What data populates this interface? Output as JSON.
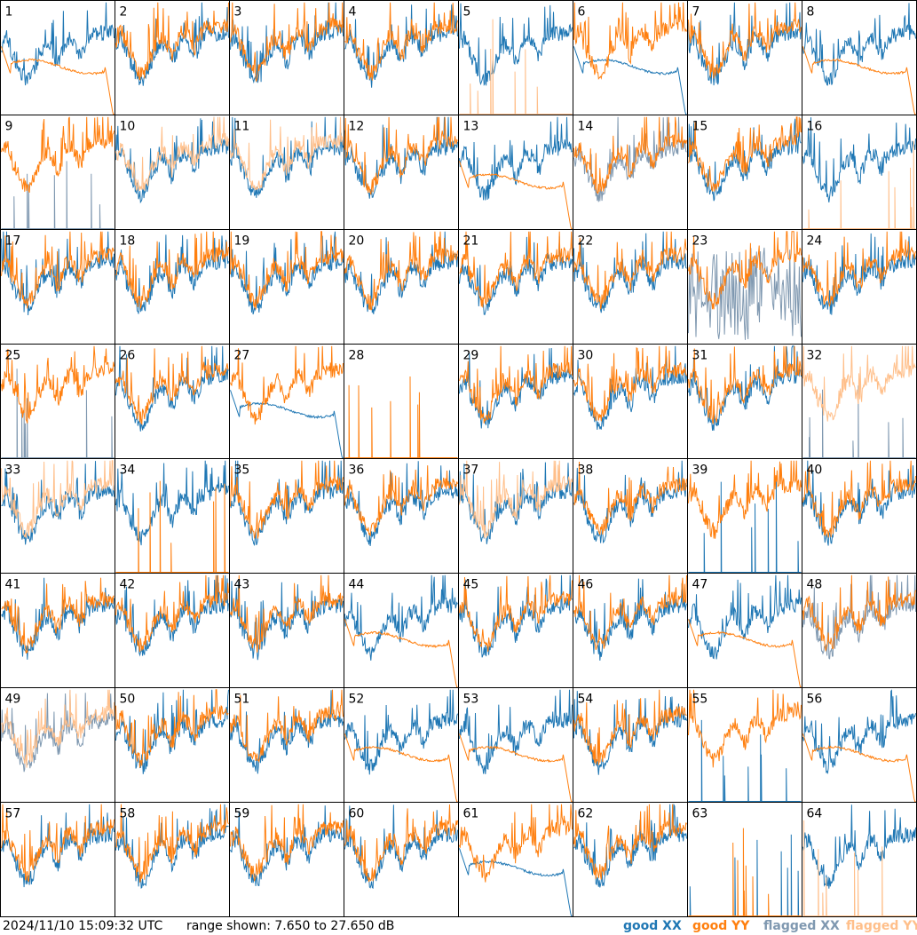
{
  "footer": {
    "timestamp": "2024/11/10 15:09:32 UTC",
    "range": "range shown: 7.650 to 27.650 dB"
  },
  "legend": [
    {
      "label": "good",
      "pol": "XX",
      "color": "#1f77b4"
    },
    {
      "label": "good",
      "pol": "YY",
      "color": "#ff7f0e"
    },
    {
      "label": "flagged",
      "pol": "XX",
      "color": "#7f98b0"
    },
    {
      "label": "flagged",
      "pol": "YY",
      "color": "#ffbf8a"
    }
  ],
  "colors": {
    "good_xx": "#1f77b4",
    "good_yy": "#ff7f0e",
    "flagged_xx": "#7f98b0",
    "flagged_yy": "#ffbf8a"
  },
  "chart_data": {
    "type": "line",
    "layout": "8x8 small multiples",
    "ylim_db": [
      7.65,
      27.65
    ],
    "series_names": [
      "XX",
      "YY"
    ],
    "panels": [
      {
        "id": 1,
        "xx": "good",
        "yy": "anomalous"
      },
      {
        "id": 2,
        "xx": "good",
        "yy": "good"
      },
      {
        "id": 3,
        "xx": "good",
        "yy": "good"
      },
      {
        "id": 4,
        "xx": "good",
        "yy": "good"
      },
      {
        "id": 5,
        "xx": "good",
        "yy": "flagged_spikes"
      },
      {
        "id": 6,
        "xx": "anomalous",
        "yy": "good"
      },
      {
        "id": 7,
        "xx": "good",
        "yy": "good"
      },
      {
        "id": 8,
        "xx": "good",
        "yy": "anomalous"
      },
      {
        "id": 9,
        "xx": "flagged_spikes",
        "yy": "good"
      },
      {
        "id": 10,
        "xx": "good",
        "yy": "flagged"
      },
      {
        "id": 11,
        "xx": "good",
        "yy": "flagged"
      },
      {
        "id": 12,
        "xx": "good",
        "yy": "good"
      },
      {
        "id": 13,
        "xx": "good",
        "yy": "anomalous"
      },
      {
        "id": 14,
        "xx": "flagged",
        "yy": "good"
      },
      {
        "id": 15,
        "xx": "good",
        "yy": "good"
      },
      {
        "id": 16,
        "xx": "good",
        "yy": "flagged_spikes"
      },
      {
        "id": 17,
        "xx": "good",
        "yy": "good"
      },
      {
        "id": 18,
        "xx": "good",
        "yy": "good"
      },
      {
        "id": 19,
        "xx": "good",
        "yy": "good"
      },
      {
        "id": 20,
        "xx": "good",
        "yy": "good"
      },
      {
        "id": 21,
        "xx": "good",
        "yy": "good"
      },
      {
        "id": 22,
        "xx": "good",
        "yy": "good"
      },
      {
        "id": 23,
        "xx": "flagged_noisy",
        "yy": "good"
      },
      {
        "id": 24,
        "xx": "good",
        "yy": "good"
      },
      {
        "id": 25,
        "xx": "flagged_spikes",
        "yy": "good"
      },
      {
        "id": 26,
        "xx": "good",
        "yy": "good"
      },
      {
        "id": 27,
        "xx": "anomalous",
        "yy": "good"
      },
      {
        "id": 28,
        "xx": "none",
        "yy": "spikes"
      },
      {
        "id": 29,
        "xx": "good",
        "yy": "good"
      },
      {
        "id": 30,
        "xx": "good",
        "yy": "good"
      },
      {
        "id": 31,
        "xx": "good",
        "yy": "good"
      },
      {
        "id": 32,
        "xx": "flagged_spikes",
        "yy": "flagged"
      },
      {
        "id": 33,
        "xx": "good",
        "yy": "flagged"
      },
      {
        "id": 34,
        "xx": "good",
        "yy": "spikes"
      },
      {
        "id": 35,
        "xx": "good",
        "yy": "good"
      },
      {
        "id": 36,
        "xx": "good",
        "yy": "good"
      },
      {
        "id": 37,
        "xx": "good",
        "yy": "flagged"
      },
      {
        "id": 38,
        "xx": "good",
        "yy": "good"
      },
      {
        "id": 39,
        "xx": "spikes",
        "yy": "good"
      },
      {
        "id": 40,
        "xx": "good",
        "yy": "good"
      },
      {
        "id": 41,
        "xx": "good",
        "yy": "good"
      },
      {
        "id": 42,
        "xx": "good",
        "yy": "good"
      },
      {
        "id": 43,
        "xx": "good",
        "yy": "good"
      },
      {
        "id": 44,
        "xx": "good",
        "yy": "anomalous"
      },
      {
        "id": 45,
        "xx": "good",
        "yy": "good"
      },
      {
        "id": 46,
        "xx": "good",
        "yy": "good"
      },
      {
        "id": 47,
        "xx": "good",
        "yy": "anomalous"
      },
      {
        "id": 48,
        "xx": "flagged",
        "yy": "good"
      },
      {
        "id": 49,
        "xx": "flagged",
        "yy": "flagged"
      },
      {
        "id": 50,
        "xx": "good",
        "yy": "good"
      },
      {
        "id": 51,
        "xx": "good",
        "yy": "good"
      },
      {
        "id": 52,
        "xx": "good",
        "yy": "anomalous"
      },
      {
        "id": 53,
        "xx": "good",
        "yy": "anomalous"
      },
      {
        "id": 54,
        "xx": "good",
        "yy": "good"
      },
      {
        "id": 55,
        "xx": "spikes",
        "yy": "good"
      },
      {
        "id": 56,
        "xx": "good",
        "yy": "anomalous"
      },
      {
        "id": 57,
        "xx": "good",
        "yy": "good"
      },
      {
        "id": 58,
        "xx": "good",
        "yy": "good"
      },
      {
        "id": 59,
        "xx": "good",
        "yy": "good"
      },
      {
        "id": 60,
        "xx": "good",
        "yy": "good"
      },
      {
        "id": 61,
        "xx": "anomalous",
        "yy": "good"
      },
      {
        "id": 62,
        "xx": "good",
        "yy": "good"
      },
      {
        "id": 63,
        "xx": "spikes",
        "yy": "spikes"
      },
      {
        "id": 64,
        "xx": "good",
        "yy": "flagged_spikes"
      }
    ]
  }
}
